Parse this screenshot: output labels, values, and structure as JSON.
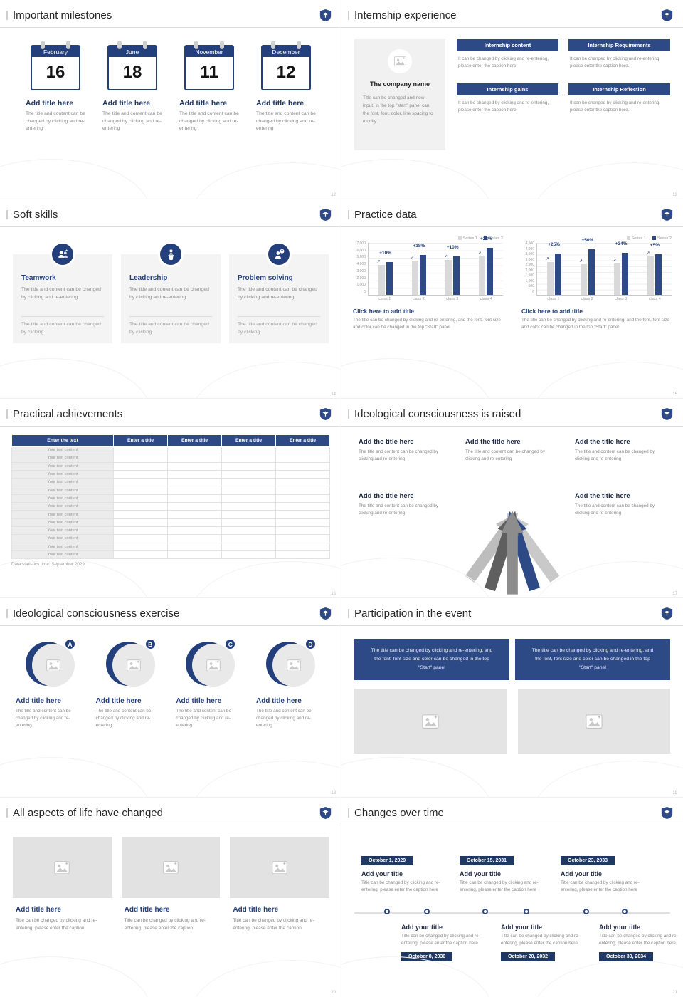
{
  "colors": {
    "primary": "#2d4a86",
    "primary_dark": "#1f3864",
    "bar_gray": "#d9d9d9",
    "caption_gray": "#8a8a8a",
    "placeholder_bg": "#e4e4e4"
  },
  "slides": {
    "milestones": {
      "title": "Important milestones",
      "page": "12",
      "item_title": "Add title here",
      "item_caption": "The title and content can be changed by clicking and re-entering",
      "items": [
        {
          "month": "February",
          "day": "16"
        },
        {
          "month": "June",
          "day": "18"
        },
        {
          "month": "November",
          "day": "11"
        },
        {
          "month": "December",
          "day": "12"
        }
      ]
    },
    "internship": {
      "title": "Internship experience",
      "page": "13",
      "company_name": "The company name",
      "company_caption": "Title can be changed and new input. in the top \"start\" panel can the font, font, color, line spacing to modify",
      "box_body": "It can be changed by clicking and re-entering, please enter the caption here.",
      "boxes": [
        {
          "header": "Internship content"
        },
        {
          "header": "Internship Requirements"
        },
        {
          "header": "Internship gains"
        },
        {
          "header": "Internship Reflection"
        }
      ]
    },
    "softskills": {
      "title": "Soft skills",
      "page": "14",
      "card_body": "The title and content can be changed by clicking and re-entering",
      "card_footer": "The title and content can be changed by clicking",
      "cards": [
        {
          "name": "Teamwork"
        },
        {
          "name": "Leadership"
        },
        {
          "name": "Problem solving"
        }
      ]
    },
    "practice": {
      "title": "Practice data",
      "page": "15",
      "cta": "Click here to add title",
      "caption": "The title can be changed by clicking and re-entering, and the font, font size and color can be changed in the top \"Start\" panel"
    },
    "table_slide": {
      "title": "Practical achievements",
      "page": "16",
      "headers": [
        "Enter the text",
        "Enter a title",
        "Enter a title",
        "Enter a title",
        "Enter a title"
      ],
      "row_label": "Your text content",
      "row_count": 14,
      "footnote": "Data statistics time: September 2029"
    },
    "raised": {
      "title": "Ideological consciousness is raised",
      "page": "17",
      "block_title": "Add the title here",
      "block_caption": "The title and content can be changed by clicking and re-entering"
    },
    "exercise": {
      "title": "Ideological consciousness exercise",
      "page": "18",
      "item_title": "Add title here",
      "item_caption": "The title and content can be changed by clicking and re-entering",
      "items": [
        {
          "letter": "A"
        },
        {
          "letter": "B"
        },
        {
          "letter": "C"
        },
        {
          "letter": "D"
        }
      ]
    },
    "participation": {
      "title": "Participation in the event",
      "page": "19",
      "banner_left": "The title can be changed by clicking and re-entering, and the font, font size and color can be changed in the top \"Start\" panel",
      "banner_right": "The title can be changed by clicking and re-entering, and the font, font size and color can be changed in the top \"Start\" panel"
    },
    "life": {
      "title": "All aspects of life have changed",
      "page": "20",
      "card_title": "Add title here",
      "card_caption": "Title can be changed by clicking and re-entering, please enter the caption"
    },
    "timeline": {
      "title": "Changes over time",
      "page": "21",
      "item_title": "Add your title",
      "item_caption": "Title can be changed by clicking and re-entering, please enter the caption here",
      "top": [
        {
          "date": "October 1, 2029"
        },
        {
          "date": "October 15, 2031"
        },
        {
          "date": "October 23, 2033"
        }
      ],
      "bottom": [
        {
          "date": "October 8, 2030"
        },
        {
          "date": "October 20, 2032"
        },
        {
          "date": "October 30, 2034"
        }
      ]
    }
  },
  "chart_data": [
    {
      "type": "bar",
      "title": "Click here to add title",
      "categories": [
        "class 1",
        "class 2",
        "class 3",
        "class 4"
      ],
      "series": [
        {
          "name": "Series 1",
          "values": [
            4000,
            4500,
            4600,
            5100
          ]
        },
        {
          "name": "Series 2",
          "values": [
            4400,
            5300,
            5100,
            6200
          ]
        }
      ],
      "annotations": [
        "+10%",
        "+18%",
        "+10%",
        "+22%"
      ],
      "ylim": [
        0,
        7000
      ],
      "ytick_step": 1000,
      "grid": true,
      "legend_position": "top-right"
    },
    {
      "type": "bar",
      "title": "Click here to add title",
      "categories": [
        "class 1",
        "class 2",
        "class 3",
        "class 4"
      ],
      "series": [
        {
          "name": "Series 1",
          "values": [
            2800,
            2600,
            2700,
            3300
          ]
        },
        {
          "name": "Series 2",
          "values": [
            3500,
            3900,
            3600,
            3450
          ]
        }
      ],
      "annotations": [
        "+25%",
        "+50%",
        "+34%",
        "+5%"
      ],
      "ylim": [
        0,
        4500
      ],
      "ytick_step": 500,
      "grid": true,
      "legend_position": "top-right"
    }
  ]
}
